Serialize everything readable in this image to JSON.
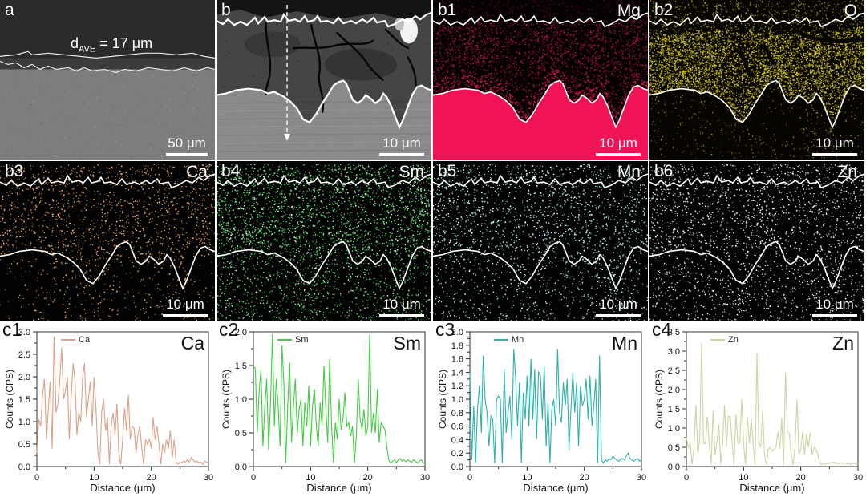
{
  "figure": {
    "panels": [
      {
        "id": "a",
        "label": "a",
        "scale": "50 μm",
        "annotation": {
          "prefix": "d",
          "sub": "AVE",
          "rest": " = 17 μm"
        }
      },
      {
        "id": "b",
        "label": "b",
        "scale": "10 μm"
      },
      {
        "id": "b1",
        "label": "b1",
        "element": "Mg",
        "scale": "10 μm",
        "color": "#f01457"
      },
      {
        "id": "b2",
        "label": "b2",
        "element": "O",
        "scale": "10 μm",
        "color": "#d2c11c"
      },
      {
        "id": "b3",
        "label": "b3",
        "element": "Ca",
        "scale": "10 μm",
        "color": "#e29b60"
      },
      {
        "id": "b4",
        "label": "b4",
        "element": "Sm",
        "scale": "10 μm",
        "color": "#3bcf4e"
      },
      {
        "id": "b5",
        "label": "b5",
        "element": "Mn",
        "scale": "10 μm",
        "color": "#9fe0df"
      },
      {
        "id": "b6",
        "label": "b6",
        "element": "Zn",
        "scale": "10 μm",
        "color": "#e2ece6"
      }
    ]
  },
  "chart_data": [
    {
      "type": "line",
      "panel_label": "c1",
      "title": "Ca",
      "legend": "Ca",
      "color": "#dba287",
      "xlabel": "Distance (μm)",
      "ylabel": "Counts (CPS)",
      "xlim": [
        0,
        30
      ],
      "ylim": [
        0,
        3.0
      ],
      "ytick_step": 0.5,
      "xticks": [
        0,
        10,
        20,
        30
      ],
      "xminor": [
        5,
        15,
        25
      ],
      "values": [
        0.3,
        1.05,
        0.9,
        1.6,
        1.95,
        0.6,
        1.3,
        1.9,
        0.4,
        2.9,
        1.2,
        1.4,
        1.9,
        2.65,
        1.5,
        1.7,
        2.0,
        0.6,
        1.55,
        2.3,
        1.9,
        0.7,
        1.2,
        1.0,
        2.0,
        2.3,
        1.1,
        1.5,
        1.9,
        0.9,
        2.0,
        1.3,
        0.3,
        0.05,
        1.2,
        1.5,
        0.8,
        1.1,
        0.05,
        0.9,
        1.2,
        0.7,
        1.4,
        0.3,
        0.05,
        0.6,
        1.3,
        0.8,
        1.6,
        0.6,
        0.9,
        0.85,
        0.3,
        0.7,
        0.9,
        0.4,
        0.05,
        0.6,
        0.5,
        0.6,
        0.4,
        1.1,
        0.6,
        0.9,
        0.5,
        0.05,
        0.5,
        0.3,
        0.6,
        0.4,
        0.8,
        0.2,
        0.6,
        0.1,
        0.05,
        0.1,
        0.08,
        0.12,
        0.1,
        0.15,
        0.1,
        0.2,
        0.15,
        0.1,
        0.12,
        0.08,
        0.1,
        0.05,
        0.12,
        0.1,
        0.08
      ]
    },
    {
      "type": "line",
      "panel_label": "c2",
      "title": "Sm",
      "legend": "Sm",
      "color": "#44cc44",
      "xlabel": "Distance (μm)",
      "ylabel": "Counts (CPS)",
      "xlim": [
        0,
        30
      ],
      "ylim": [
        0,
        2.0
      ],
      "ytick_step": 0.5,
      "xticks": [
        0,
        10,
        20,
        30
      ],
      "xminor": [
        5,
        15,
        25
      ],
      "values": [
        1.5,
        1.45,
        0.5,
        1.1,
        1.45,
        0.3,
        0.9,
        1.3,
        0.25,
        0.95,
        1.97,
        0.6,
        1.3,
        0.9,
        0.3,
        1.8,
        1.25,
        0.05,
        0.9,
        1.55,
        0.35,
        0.9,
        1.3,
        0.5,
        0.85,
        1.0,
        0.3,
        0.95,
        0.6,
        1.2,
        0.3,
        0.9,
        1.15,
        0.6,
        0.3,
        0.95,
        0.6,
        1.5,
        0.85,
        0.35,
        1.6,
        0.6,
        0.05,
        0.65,
        0.4,
        1.0,
        0.55,
        0.7,
        1.1,
        0.6,
        0.65,
        0.45,
        0.6,
        0.05,
        0.45,
        1.3,
        0.7,
        0.55,
        0.85,
        0.45,
        0.6,
        1.96,
        0.5,
        0.8,
        0.5,
        1.15,
        0.35,
        0.65,
        0.6,
        0.55,
        0.3,
        0.1,
        0.05,
        0.08,
        0.1,
        0.06,
        0.1,
        0.12,
        0.08,
        0.1,
        0.07,
        0.1,
        0.08,
        0.06,
        0.1,
        0.08,
        0.05,
        0.08,
        0.1,
        0.06,
        0.05
      ]
    },
    {
      "type": "line",
      "panel_label": "c3",
      "title": "Mn",
      "legend": "Mn",
      "color": "#2ab3ab",
      "xlabel": "Distance (μm)",
      "ylabel": "Counts (CPS)",
      "xlim": [
        0,
        30
      ],
      "ylim": [
        0,
        2.0
      ],
      "ytick_step": 0.2,
      "xticks": [
        0,
        10,
        20,
        30
      ],
      "xminor": [
        5,
        15,
        25
      ],
      "values": [
        1.4,
        0.1,
        0.9,
        0.05,
        0.85,
        1.2,
        0.5,
        1.65,
        1.0,
        0.8,
        0.3,
        0.75,
        0.7,
        0.05,
        1.0,
        1.05,
        1.0,
        0.05,
        1.45,
        0.5,
        0.8,
        1.05,
        0.4,
        1.75,
        1.3,
        0.6,
        1.25,
        0.05,
        1.1,
        0.7,
        1.35,
        0.6,
        1.6,
        0.7,
        1.45,
        0.4,
        1.4,
        1.35,
        0.7,
        1.5,
        0.3,
        0.95,
        0.05,
        0.85,
        1.0,
        0.6,
        1.75,
        0.8,
        0.65,
        1.25,
        0.9,
        1.3,
        0.25,
        0.85,
        1.4,
        0.8,
        1.25,
        0.3,
        1.2,
        0.9,
        1.0,
        1.3,
        0.7,
        1.35,
        0.6,
        0.9,
        1.3,
        0.05,
        1.65,
        0.1,
        0.05,
        0.1,
        0.08,
        0.12,
        0.1,
        0.15,
        0.12,
        0.1,
        0.08,
        0.1,
        0.12,
        0.1,
        0.15,
        0.2,
        0.12,
        0.1,
        0.08,
        0.1,
        0.12,
        0.08,
        0.1
      ]
    },
    {
      "type": "line",
      "panel_label": "c4",
      "title": "Zn",
      "legend": "Zn",
      "color": "#c9d6a3",
      "xlabel": "Distance (μm)",
      "ylabel": "Counts (CPS)",
      "xlim": [
        0,
        30
      ],
      "ylim": [
        0,
        3.5
      ],
      "ytick_step": 0.5,
      "xticks": [
        0,
        10,
        20,
        30
      ],
      "xminor": [
        5,
        15,
        25
      ],
      "values": [
        0.75,
        0.5,
        0.6,
        0.05,
        0.5,
        1.6,
        0.3,
        0.7,
        3.2,
        0.6,
        0.6,
        1.3,
        0.6,
        0.05,
        1.45,
        0.3,
        0.6,
        1.1,
        0.05,
        0.6,
        1.6,
        0.5,
        1.3,
        1.3,
        0.6,
        0.05,
        1.35,
        0.6,
        0.6,
        1.75,
        0.6,
        0.05,
        1.3,
        0.6,
        1.25,
        0.6,
        0.05,
        2.95,
        0.6,
        0.5,
        1.45,
        0.3,
        0.05,
        0.45,
        0.5,
        0.4,
        0.45,
        0.5,
        0.9,
        0.45,
        1.25,
        0.05,
        2.45,
        0.9,
        0.85,
        0.3,
        0.05,
        0.5,
        1.75,
        0.3,
        0.45,
        0.9,
        0.3,
        0.85,
        0.5,
        0.9,
        0.3,
        0.5,
        0.45,
        0.3,
        0.1,
        0.05,
        0.08,
        0.06,
        0.1,
        0.08,
        0.1,
        0.12,
        0.1,
        0.08,
        0.06,
        0.1,
        0.08,
        0.1,
        0.06,
        0.08,
        0.05,
        0.08,
        0.1,
        0.06,
        0.08
      ]
    }
  ]
}
